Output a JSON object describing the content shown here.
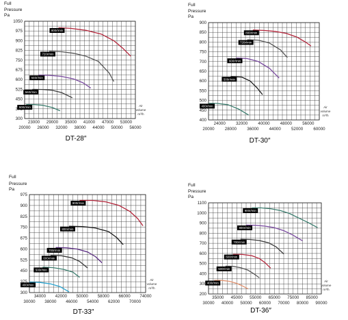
{
  "chart_data": [
    {
      "type": "line",
      "title": "DT-28″",
      "ylabel": [
        "Full",
        "Pressure",
        "Pa"
      ],
      "xunit": [
        "Air",
        "volume",
        "m³/h"
      ],
      "xticks_top": [
        "23000",
        "29000",
        "35000",
        "41000",
        "47000",
        "53000"
      ],
      "xticks_bottom": [
        "20000",
        "26000",
        "32000",
        "38000",
        "44000",
        "50000",
        "56000"
      ],
      "yticks": [
        "300",
        "375",
        "450",
        "525",
        "600",
        "675",
        "750",
        "825",
        "900",
        "975",
        "1050"
      ],
      "xlim": [
        20000,
        56000
      ],
      "ylim": [
        300,
        1050
      ],
      "grid": true,
      "series": [
        {
          "name": "800r/min",
          "color": "#b3253a",
          "x": [
            31000,
            35000,
            40000,
            45000,
            49000,
            52000,
            54500
          ],
          "y": [
            1000,
            995,
            980,
            950,
            900,
            840,
            780
          ]
        },
        {
          "name": "720r/min",
          "color": "#555555",
          "x": [
            28000,
            32000,
            36000,
            40000,
            44000,
            47500,
            49000
          ],
          "y": [
            818,
            815,
            803,
            780,
            740,
            650,
            585
          ]
        },
        {
          "name": "640r/min",
          "color": "#7a4aa0",
          "x": [
            24500,
            28000,
            32000,
            36000,
            39000,
            41500
          ],
          "y": [
            635,
            633,
            625,
            605,
            575,
            535
          ]
        },
        {
          "name": "560r/min",
          "color": "#3a3a3a",
          "x": [
            22500,
            26000,
            29000,
            32000,
            35500
          ],
          "y": [
            525,
            524,
            518,
            500,
            460
          ]
        },
        {
          "name": "500r/min",
          "color": "#3b7d6e",
          "x": [
            20500,
            23000,
            26000,
            29000,
            31500
          ],
          "y": [
            408,
            408,
            402,
            385,
            360
          ]
        }
      ]
    },
    {
      "type": "line",
      "title": "DT-30″",
      "ylabel": [
        "Full",
        "Pressure",
        "Pa"
      ],
      "xunit": [
        "Air",
        "volume",
        "m³/h"
      ],
      "xticks_top": [
        "24000",
        "32000",
        "40000",
        "48000",
        "56000"
      ],
      "xticks_bottom": [
        "20000",
        "28000",
        "36000",
        "44000",
        "52000",
        "60000"
      ],
      "yticks": [
        "400",
        "450",
        "500",
        "550",
        "600",
        "650",
        "700",
        "750",
        "800",
        "850",
        "900"
      ],
      "xlim": [
        20000,
        60000
      ],
      "ylim": [
        400,
        900
      ],
      "grid": true,
      "series": [
        {
          "name": "800r/min",
          "color": "#b3253a",
          "x": [
            36000,
            40000,
            44000,
            48000,
            52000,
            55000,
            57000
          ],
          "y": [
            862,
            860,
            855,
            845,
            825,
            800,
            780
          ]
        },
        {
          "name": "720r/min",
          "color": "#555555",
          "x": [
            34000,
            38000,
            42000,
            46000,
            48500
          ],
          "y": [
            812,
            810,
            795,
            760,
            720
          ]
        },
        {
          "name": "600r/min",
          "color": "#7a4aa0",
          "x": [
            30000,
            34000,
            38000,
            42000,
            45500
          ],
          "y": [
            718,
            715,
            700,
            665,
            615
          ]
        },
        {
          "name": "500r/min",
          "color": "#1a1a1a",
          "x": [
            28000,
            32000,
            35000,
            37500,
            39500
          ],
          "y": [
            623,
            620,
            600,
            565,
            530
          ]
        },
        {
          "name": "400r/min",
          "color": "#3b7d6e",
          "x": [
            20000,
            23000,
            27000,
            31000,
            34500
          ],
          "y": [
            485,
            485,
            478,
            455,
            425
          ]
        }
      ]
    },
    {
      "type": "line",
      "title": "DT-33″",
      "ylabel": [
        "Full",
        "Pressure",
        "Pa"
      ],
      "xunit": [
        "Air",
        "volume",
        "m³/h"
      ],
      "xticks_top": [
        "34000",
        "42000",
        "50000",
        "58000",
        "66000",
        "74000"
      ],
      "xticks_bottom": [
        "30000",
        "38000",
        "46000",
        "54000",
        "62000",
        "70000"
      ],
      "yticks": [
        "300",
        "375",
        "450",
        "525",
        "600",
        "675",
        "750",
        "825",
        "900",
        "975"
      ],
      "xlim": [
        30000,
        74000
      ],
      "ylim": [
        300,
        975
      ],
      "grid": true,
      "series": [
        {
          "name": "900r/min",
          "color": "#b3253a",
          "x": [
            49000,
            54000,
            59000,
            64000,
            68000,
            71000,
            73000
          ],
          "y": [
            935,
            935,
            925,
            900,
            860,
            810,
            760
          ]
        },
        {
          "name": "800r/min",
          "color": "#1a1a1a",
          "x": [
            45000,
            50000,
            55000,
            60000,
            63000,
            65500
          ],
          "y": [
            757,
            755,
            745,
            720,
            680,
            630
          ]
        },
        {
          "name": "700r/min",
          "color": "#5b2d82",
          "x": [
            40000,
            44000,
            48000,
            52000,
            55000,
            57500
          ],
          "y": [
            610,
            608,
            600,
            580,
            548,
            505
          ]
        },
        {
          "name": "600r/min",
          "color": "#3a3a3a",
          "x": [
            38000,
            42000,
            46000,
            49000,
            52000
          ],
          "y": [
            556,
            554,
            540,
            515,
            470
          ]
        },
        {
          "name": "500r/min",
          "color": "#3b7d6e",
          "x": [
            35000,
            39000,
            43000,
            46500,
            49000
          ],
          "y": [
            475,
            472,
            460,
            440,
            405
          ]
        },
        {
          "name": "400r/min",
          "color": "#2aa3cf",
          "x": [
            30000,
            34000,
            38000,
            41500,
            45000
          ],
          "y": [
            372,
            370,
            360,
            342,
            305
          ]
        }
      ]
    },
    {
      "type": "line",
      "title": "DT-36″",
      "ylabel": [
        "Full",
        "Pressure",
        "Pa"
      ],
      "xunit": [
        "Air",
        "volume",
        "m³/h"
      ],
      "xticks_top": [
        "35000",
        "45000",
        "55000",
        "65000",
        "75000",
        "85000"
      ],
      "xticks_bottom": [
        "30000",
        "40000",
        "50000",
        "60000",
        "70000",
        "80000",
        "90000"
      ],
      "yticks": [
        "200",
        "300",
        "400",
        "500",
        "600",
        "700",
        "800",
        "900",
        "1000",
        "1100"
      ],
      "xlim": [
        30000,
        90000
      ],
      "ylim": [
        200,
        1100
      ],
      "grid": true,
      "series": [
        {
          "name": "900r/min",
          "color": "#3b7d6e",
          "x": [
            53000,
            58000,
            63000,
            68000,
            73000,
            78000,
            83000,
            88000
          ],
          "y": [
            1050,
            1050,
            1042,
            1025,
            995,
            950,
            905,
            855
          ]
        },
        {
          "name": "800r/min",
          "color": "#7a4aa0",
          "x": [
            50000,
            55000,
            60000,
            65000,
            70000,
            75000,
            80000
          ],
          "y": [
            880,
            878,
            870,
            855,
            825,
            780,
            725
          ]
        },
        {
          "name": "700r/min",
          "color": "#3a3a3a",
          "x": [
            47000,
            52000,
            57000,
            62000,
            66000,
            70000
          ],
          "y": [
            740,
            738,
            728,
            705,
            665,
            595
          ]
        },
        {
          "name": "600r/min",
          "color": "#b3253a",
          "x": [
            43000,
            48000,
            53000,
            57000,
            60000,
            63000
          ],
          "y": [
            592,
            590,
            578,
            550,
            510,
            455
          ]
        },
        {
          "name": "500r/min",
          "color": "#555555",
          "x": [
            39000,
            43000,
            47000,
            51000,
            54000,
            57000
          ],
          "y": [
            475,
            473,
            460,
            435,
            400,
            360
          ]
        },
        {
          "name": "400r/min",
          "color": "#e0916d",
          "x": [
            33000,
            37000,
            41000,
            45000,
            48000,
            51000
          ],
          "y": [
            335,
            334,
            325,
            305,
            280,
            250
          ]
        }
      ]
    }
  ]
}
